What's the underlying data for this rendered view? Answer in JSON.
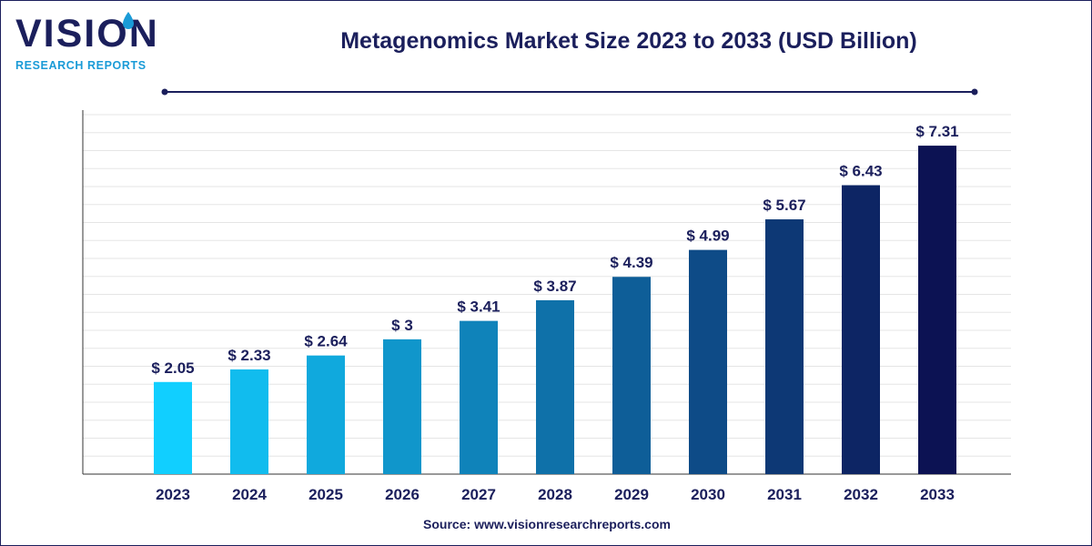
{
  "brand": {
    "name": "VISION",
    "tagline": "RESEARCH REPORTS"
  },
  "colors": {
    "navy": "#1b1f5c",
    "accent": "#1a9bd7",
    "grid": "#e5e5e5",
    "bar_start": "#11cfff",
    "bar_end": "#0c1253"
  },
  "source": {
    "label": "Source:",
    "url": "www.visionresearchreports.com"
  },
  "chart_data": {
    "type": "bar",
    "title": "Metagenomics Market Size 2023 to 2033 (USD Billion)",
    "categories": [
      "2023",
      "2024",
      "2025",
      "2026",
      "2027",
      "2028",
      "2029",
      "2030",
      "2031",
      "2032",
      "2033"
    ],
    "values": [
      2.05,
      2.33,
      2.64,
      3,
      3.41,
      3.87,
      4.39,
      4.99,
      5.67,
      6.43,
      7.31
    ],
    "value_labels": [
      "$ 2.05",
      "$ 2.33",
      "$ 2.64",
      "$ 3",
      "$ 3.41",
      "$ 3.87",
      "$ 4.39",
      "$ 4.99",
      "$ 5.67",
      "$ 6.43",
      "$ 7.31"
    ],
    "xlabel": "",
    "ylabel": "",
    "ylim": [
      0,
      8
    ],
    "grid": true,
    "legend": "none",
    "y_tick_labels_shown": false
  }
}
